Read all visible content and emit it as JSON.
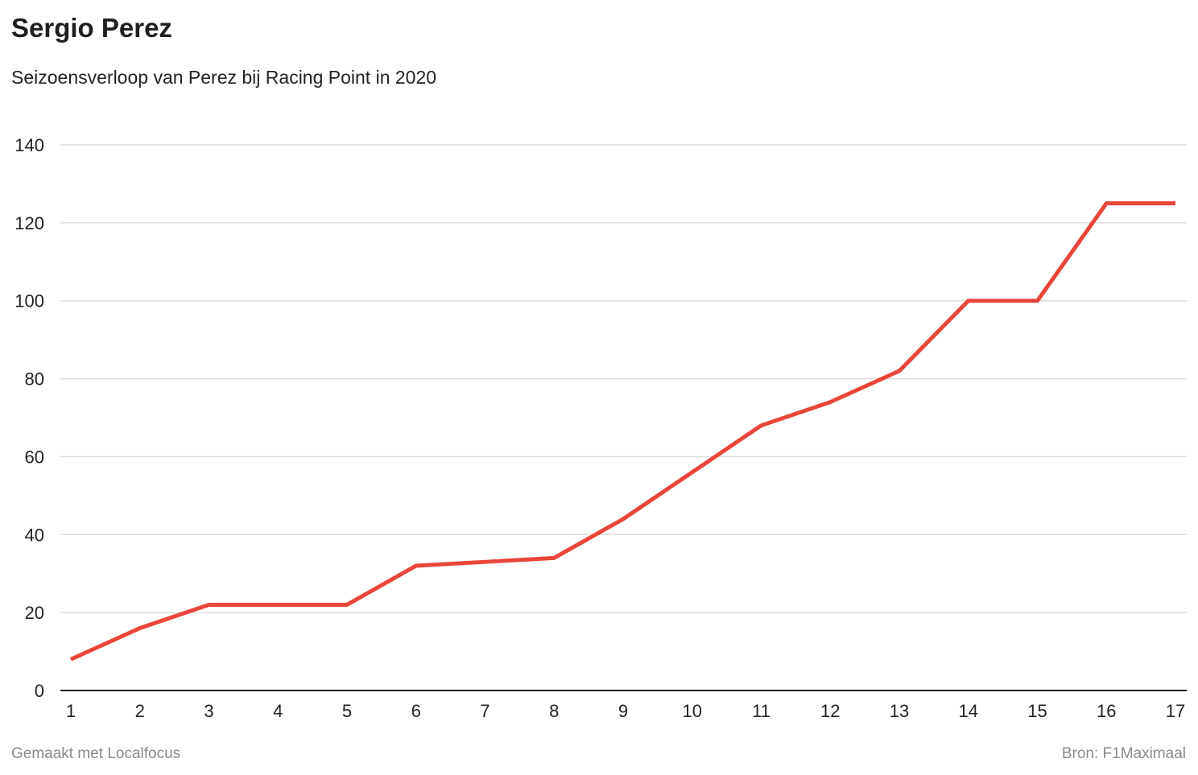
{
  "chart_data": {
    "type": "line",
    "title": "Sergio Perez",
    "subtitle": "Seizoensverloop van Perez bij Racing Point in 2020",
    "xlabel": "",
    "ylabel": "",
    "x": [
      1,
      2,
      3,
      4,
      5,
      6,
      7,
      8,
      9,
      10,
      11,
      12,
      13,
      14,
      15,
      16,
      17
    ],
    "series": [
      {
        "color": "#e8463a",
        "values": [
          8,
          16,
          22,
          22,
          22,
          32,
          33,
          34,
          44,
          56,
          68,
          74,
          82,
          100,
          100,
          125,
          125
        ]
      }
    ],
    "xlim": [
      1,
      17
    ],
    "ylim": [
      0,
      140
    ],
    "yticks": [
      0,
      20,
      40,
      60,
      80,
      100,
      120,
      140
    ],
    "grid": true,
    "legend": "none"
  },
  "footer": {
    "credit": "Gemaakt met Localfocus",
    "source": "Bron:  F1Maximaal"
  }
}
